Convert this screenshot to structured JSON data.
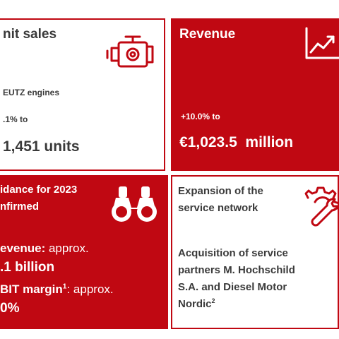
{
  "colors": {
    "accent": "#c00812",
    "text_dark": "#3a3a3a",
    "white": "#ffffff"
  },
  "unit_sales": {
    "title": "nit sales",
    "line1": "EUTZ engines",
    "line2": ".1% to",
    "value": "1,451 units",
    "icon": "engine-icon"
  },
  "revenue": {
    "title": "Revenue",
    "change": "+10.0% to",
    "value": "€1,023.5  million",
    "icon": "rising-chart-icon"
  },
  "guidance": {
    "title_line1": "idance for 2023",
    "title_line2": "nfirmed",
    "revenue_label": "evenue:",
    "revenue_approx": " approx.",
    "revenue_value": ".1 billion",
    "ebit_label": "BIT margin",
    "ebit_sup": "1",
    "ebit_approx": ": approx.",
    "ebit_value": "0%",
    "icon": "binoculars-icon"
  },
  "service": {
    "title_line1": "Expansion of the",
    "title_line2": "service network",
    "body_line1": "Acquisition of service",
    "body_line2": "partners M. Hochschild",
    "body_line3": "S.A. and Diesel Motor",
    "body_line4": "Nordic",
    "body_sup": "2",
    "icon": "gear-wrench-icon"
  }
}
